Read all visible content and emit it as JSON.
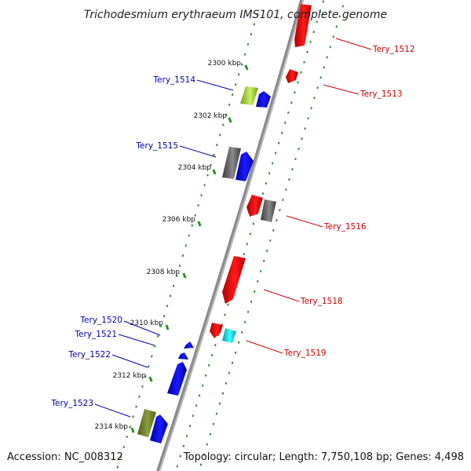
{
  "title": "Trichodesmium erythraeum IMS101, complete genome",
  "footer": {
    "accession": "Accession: NC_008312",
    "summary": "Topology: circular; Length: 7,750,108 bp; Genes: 4,498"
  },
  "colors": {
    "backbone": "#8c8c8c",
    "ticks": "#2e8b2e",
    "forward_label": "#cc0000",
    "reverse_label": "#0000aa"
  },
  "ticks": [
    {
      "label": "2300 kbp"
    },
    {
      "label": "2302 kbp"
    },
    {
      "label": "2304 kbp"
    },
    {
      "label": "2306 kbp"
    },
    {
      "label": "2308 kbp"
    },
    {
      "label": "2310 kbp"
    },
    {
      "label": "2312 kbp"
    },
    {
      "label": "2314 kbp"
    }
  ],
  "forward_labels": [
    {
      "id": "Tery_1512"
    },
    {
      "id": "Tery_1513"
    },
    {
      "id": "Tery_1516"
    },
    {
      "id": "Tery_1518"
    },
    {
      "id": "Tery_1519"
    }
  ],
  "reverse_labels": [
    {
      "id": "Tery_1514"
    },
    {
      "id": "Tery_1515"
    },
    {
      "id": "Tery_1520"
    },
    {
      "id": "Tery_1521"
    },
    {
      "id": "Tery_1522"
    },
    {
      "id": "Tery_1523"
    }
  ]
}
